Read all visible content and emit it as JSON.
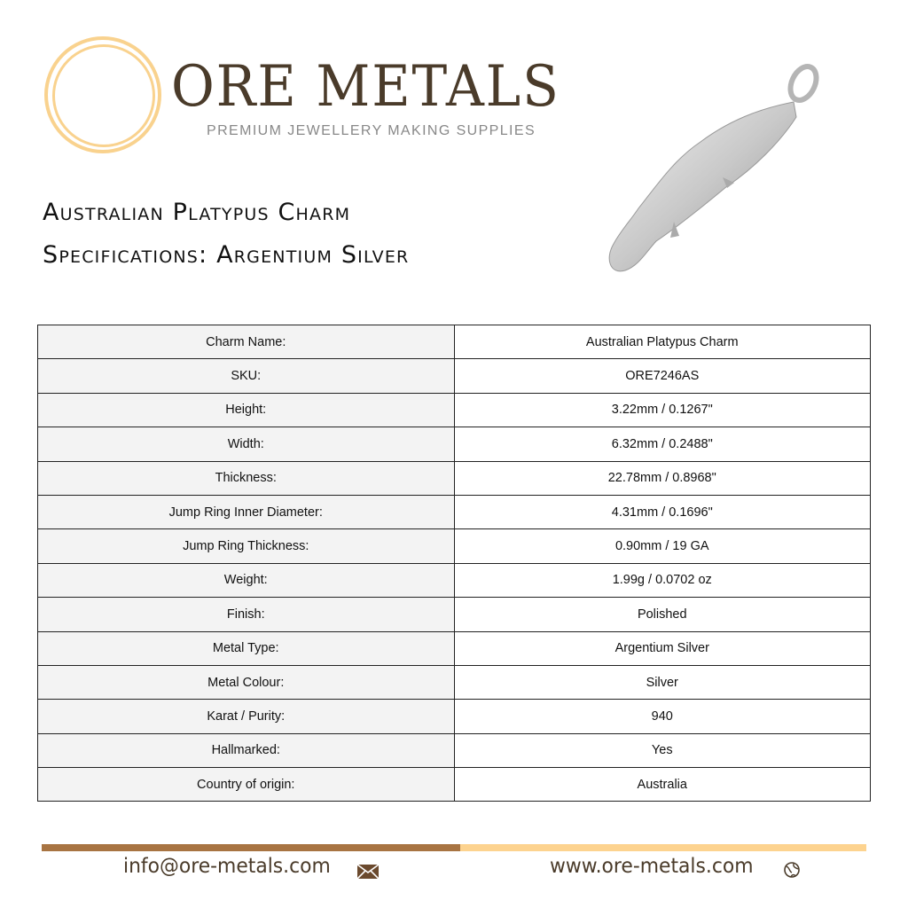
{
  "brand": {
    "name": "ORE METALS",
    "tagline": "PREMIUM JEWELLERY MAKING SUPPLIES",
    "colors": {
      "gold": "#f9d28e",
      "brown": "#4a3b2a",
      "bar_dark": "#a87442",
      "bar_light": "#fdd38f"
    }
  },
  "heading": {
    "title": "Australian Platypus Charm",
    "subtitle": "Specifications: Argentium Silver"
  },
  "specs": [
    {
      "label": "Charm Name:",
      "value": "Australian Platypus Charm"
    },
    {
      "label": "SKU:",
      "value": "ORE7246AS"
    },
    {
      "label": "Height:",
      "value": "3.22mm / 0.1267\""
    },
    {
      "label": "Width:",
      "value": "6.32mm / 0.2488\""
    },
    {
      "label": "Thickness:",
      "value": "22.78mm / 0.8968\""
    },
    {
      "label": "Jump Ring Inner Diameter:",
      "value": "4.31mm / 0.1696\""
    },
    {
      "label": "Jump Ring Thickness:",
      "value": "0.90mm / 19 GA"
    },
    {
      "label": "Weight:",
      "value": "1.99g / 0.0702 oz"
    },
    {
      "label": "Finish:",
      "value": "Polished"
    },
    {
      "label": "Metal Type:",
      "value": "Argentium Silver"
    },
    {
      "label": "Metal Colour:",
      "value": "Silver"
    },
    {
      "label": "Karat / Purity:",
      "value": "940"
    },
    {
      "label": "Hallmarked:",
      "value": "Yes"
    },
    {
      "label": "Country of origin:",
      "value": "Australia"
    }
  ],
  "footer": {
    "email": "info@ore-metals.com",
    "email_icon": "envelope-icon",
    "website": "www.ore-metals.com",
    "website_icon": "globe-icon"
  }
}
